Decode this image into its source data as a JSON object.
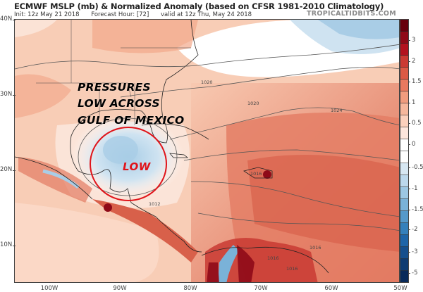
{
  "header": {
    "title": "ECMWF MSLP (mb) & Normalized Anomaly (based on CFSR 1981-2010 Climatology)",
    "init": "Init: 12z May 21 2018",
    "forecast_hour": "Forecast Hour: [72]",
    "valid": "valid at 12z Thu, May 24 2018",
    "brand": "TROPICALTIDBITS.COM"
  },
  "map": {
    "lat_ticks": [
      "40N",
      "30N",
      "20N",
      "10N"
    ],
    "lon_ticks": [
      "100W",
      "90W",
      "80W",
      "70W",
      "60W",
      "50W"
    ],
    "annotation_lines": [
      "PRESSURES",
      "LOW ACROSS",
      "GULF OF MEXICO"
    ],
    "low_label": "LOW",
    "contour_labels": [
      "1020",
      "1020",
      "1024",
      "1016",
      "1016",
      "1016",
      "1012",
      "1016"
    ],
    "highlight_color": "#e0141a"
  },
  "colorbar": {
    "labels": [
      "3",
      "2",
      "1.5",
      "1",
      "0.5",
      "0",
      "-0.5",
      "-1",
      "-1.5",
      "-2",
      "-3",
      "-5"
    ],
    "colors": [
      "#67000d",
      "#8f0a18",
      "#b3121f",
      "#cb3a33",
      "#dc5a45",
      "#e8795f",
      "#f09c7e",
      "#f6b79c",
      "#fbd0bc",
      "#fde6dc",
      "#ffffff",
      "#ffffff",
      "#d7e7f2",
      "#bcd8ec",
      "#9cc7e3",
      "#7ab2d8",
      "#5599ca",
      "#3580bb",
      "#1f65a8",
      "#164f8d",
      "#0e3b72",
      "#082a5a"
    ]
  }
}
